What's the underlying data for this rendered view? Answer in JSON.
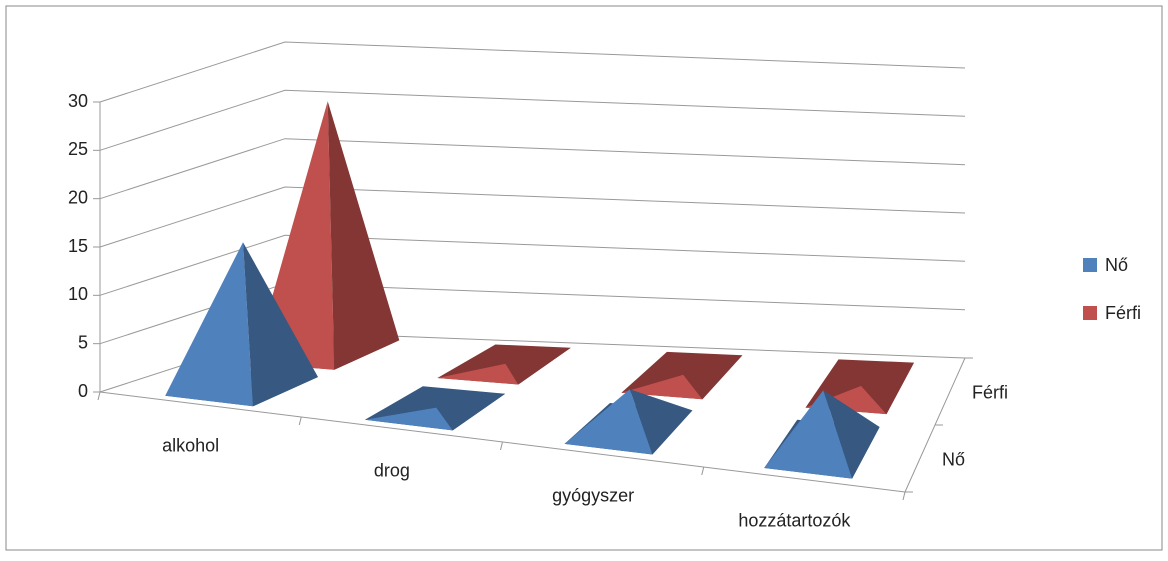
{
  "chart_data": {
    "type": "pyramid3d",
    "categories": [
      "alkohol",
      "drog",
      "gyógyszer",
      "hozzátartozók"
    ],
    "series": [
      {
        "name": "Nő",
        "color": "#4f81bd",
        "values": [
          15,
          0,
          4,
          6
        ]
      },
      {
        "name": "Férfi",
        "color": "#c0504d",
        "values": [
          26,
          0,
          0,
          0
        ]
      }
    ],
    "ylim": [
      0,
      30
    ],
    "yticks": [
      0,
      5,
      10,
      15,
      20,
      25,
      30
    ],
    "grid": true,
    "legend": "right"
  }
}
